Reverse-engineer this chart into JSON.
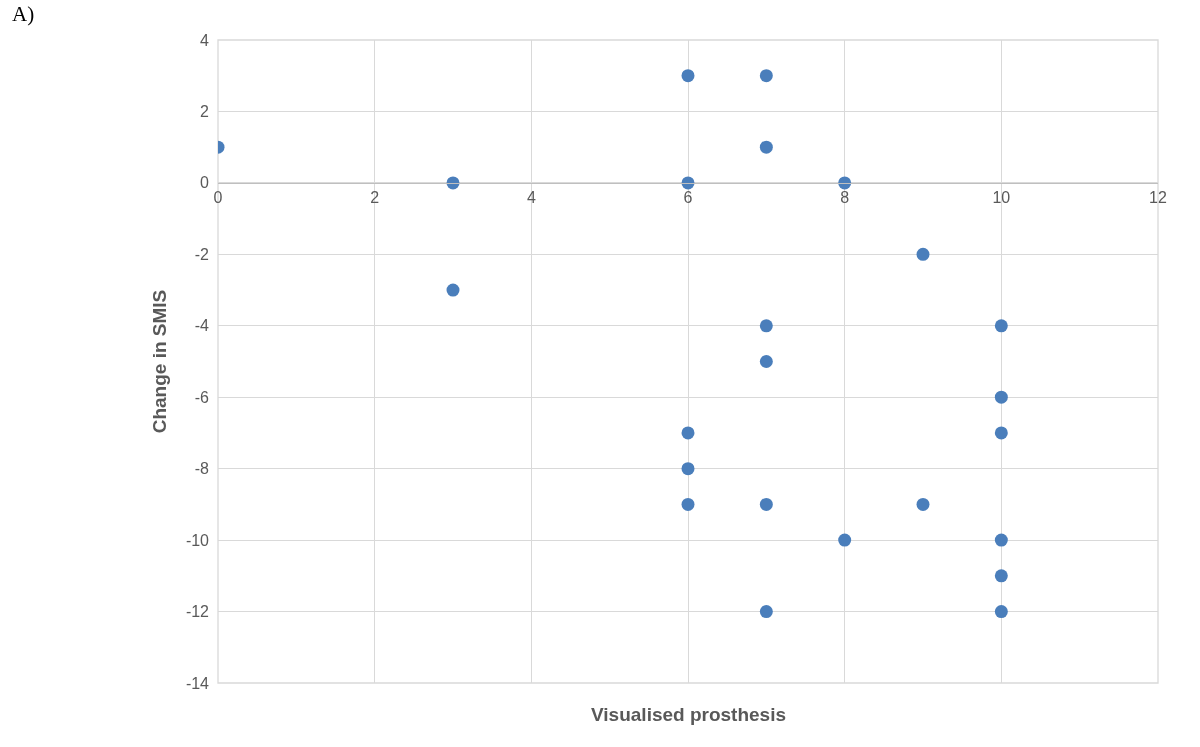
{
  "chart_data": {
    "type": "scatter",
    "xlabel": "Visualised prosthesis",
    "ylabel": "Change in SMIS",
    "annotations": [
      "A)"
    ],
    "x": [
      0,
      3,
      3,
      6,
      6,
      6,
      6,
      6,
      7,
      7,
      7,
      7,
      7,
      7,
      8,
      8,
      9,
      9,
      10,
      10,
      10,
      10,
      10,
      10
    ],
    "series": [
      {
        "color": "#4a7ebb",
        "values": [
          1,
          0,
          -3,
          3,
          0,
          -7,
          -8,
          -9,
          3,
          1,
          -4,
          -5,
          -9,
          -12,
          0,
          -10,
          -2,
          -9,
          -4,
          -6,
          -7,
          -10,
          -11,
          -12
        ]
      }
    ],
    "xlim": [
      0,
      12
    ],
    "xticks": [
      0,
      2,
      4,
      6,
      8,
      10,
      12
    ],
    "ylim": [
      -14,
      4
    ],
    "yticks": [
      -14,
      -12,
      -10,
      -8,
      -6,
      -4,
      -2,
      0,
      2,
      4
    ],
    "grid": true,
    "marker": "circle"
  }
}
